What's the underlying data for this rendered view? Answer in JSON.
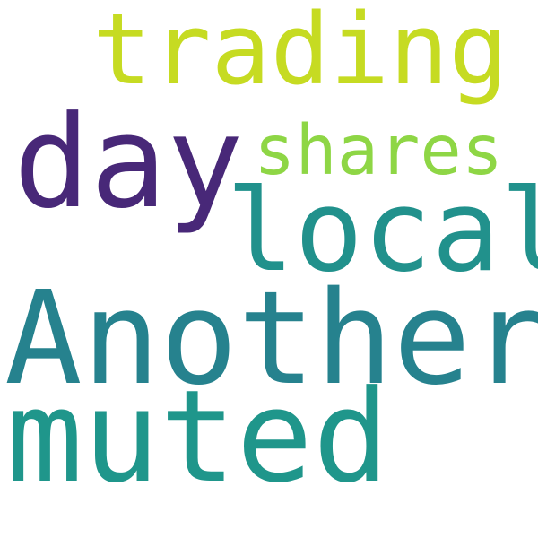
{
  "background": "#ffffff",
  "words": [
    {
      "key": "trading",
      "text": "trading",
      "color": "#c6db22"
    },
    {
      "key": "day",
      "text": "day",
      "color": "#482878"
    },
    {
      "key": "shares",
      "text": "shares",
      "color": "#8ed645"
    },
    {
      "key": "local",
      "text": "local",
      "color": "#21918c"
    },
    {
      "key": "another",
      "text": "Another",
      "color": "#26828e"
    },
    {
      "key": "muted",
      "text": "muted",
      "color": "#1f968b"
    }
  ]
}
